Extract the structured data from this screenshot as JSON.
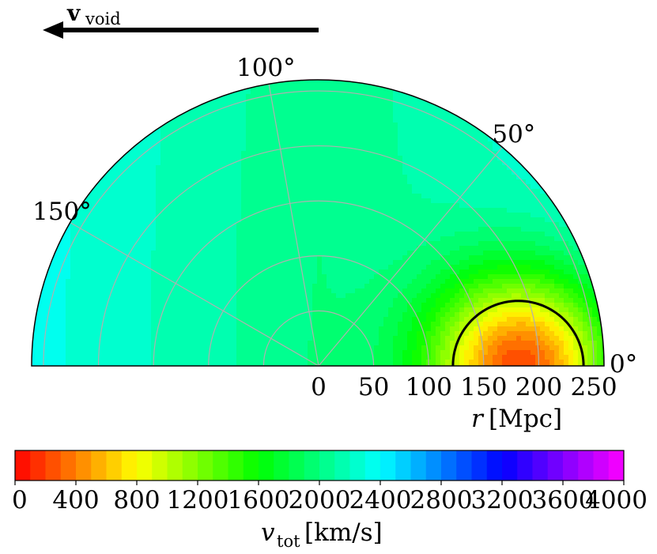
{
  "chart_data": {
    "type": "heatmap",
    "projection": "polar-half",
    "theta_range_deg": [
      0,
      180
    ],
    "r_range": [
      0,
      260
    ],
    "radial_ticks": [
      0,
      50,
      100,
      150,
      200,
      250
    ],
    "radial_tick_labels": [
      "0",
      "50",
      "100",
      "150",
      "200",
      "250"
    ],
    "angle_tick_labels": [
      {
        "deg": 0,
        "label": "0°"
      },
      {
        "deg": 50,
        "label": "50°"
      },
      {
        "deg": 100,
        "label": "100°"
      },
      {
        "deg": 150,
        "label": "150°"
      }
    ],
    "xlabel": {
      "var": "r",
      "unit": "[Mpc]"
    },
    "grid": true,
    "field": {
      "description_quantity": "v_tot",
      "background_flow_kms": 2000,
      "flow_direction": "negative x (toward 180°)",
      "local_minimum": {
        "r_mpc": 185,
        "theta_deg": 0,
        "value_kms": 0
      },
      "max_corner_value_kms": 4000
    },
    "contour": {
      "level_kms": 1000,
      "color": "#000000"
    },
    "arrow": {
      "label_main": "v",
      "label_sub": "void",
      "direction": "left"
    },
    "colorbar": {
      "min": 0,
      "max": 4000,
      "levels": 40,
      "ticks": [
        0,
        400,
        800,
        1200,
        1600,
        2000,
        2400,
        2800,
        3200,
        3600,
        4000
      ],
      "tick_labels": [
        "0",
        "400",
        "800",
        "1200",
        "1600",
        "2000",
        "2400",
        "2800",
        "3200",
        "3600",
        "4000"
      ],
      "label": {
        "var": "v",
        "sub": "tot",
        "unit": "[km/s]"
      },
      "colormap": "gist_rainbow"
    }
  }
}
